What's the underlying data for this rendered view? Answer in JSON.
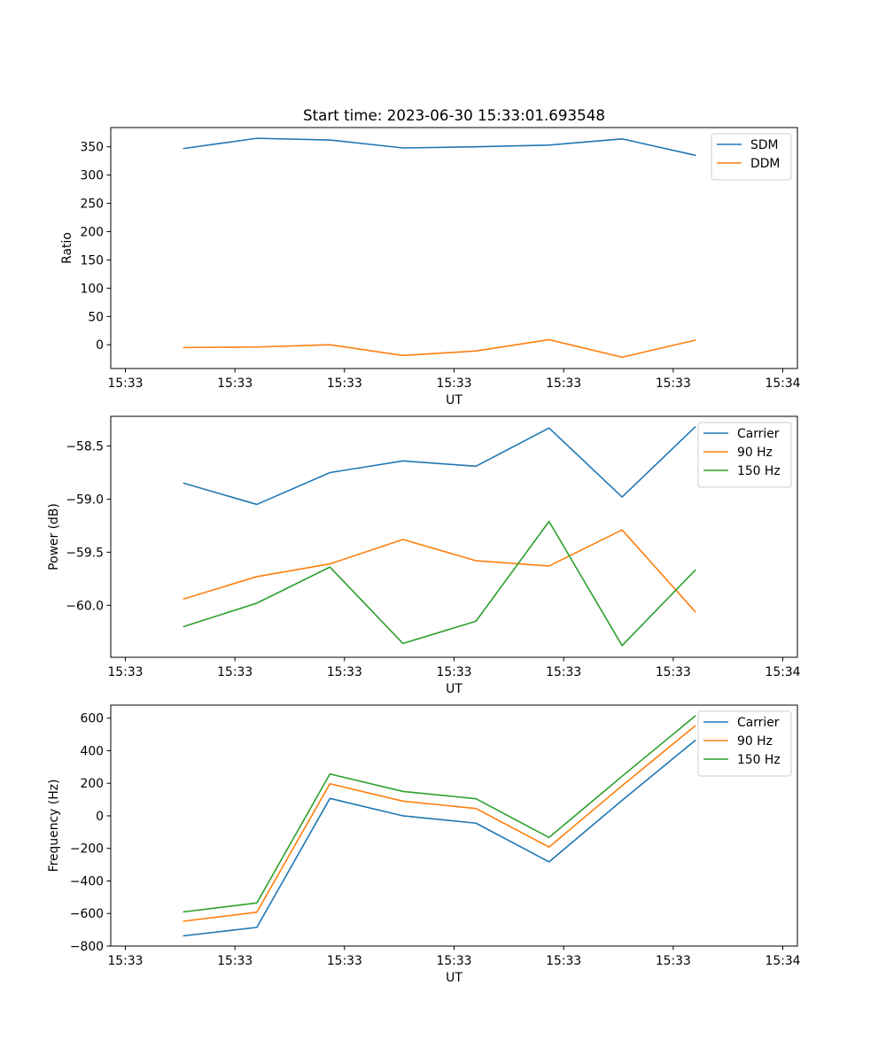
{
  "figure": {
    "title": "Start time: 2023-06-30 15:33:01.693548"
  },
  "chart_data": [
    {
      "type": "line",
      "title": "Start time: 2023-06-30 15:33:01.693548",
      "xlabel": "UT",
      "ylabel": "Ratio",
      "x_tick_labels": [
        "15:33",
        "15:33",
        "15:33",
        "15:33",
        "15:33",
        "15:33",
        "15:34"
      ],
      "x": [
        1,
        2,
        3,
        4,
        5,
        6,
        7,
        8
      ],
      "xlim": [
        0,
        9.4
      ],
      "ylim": [
        -42,
        384
      ],
      "y_ticks": [
        0,
        50,
        100,
        150,
        200,
        250,
        300,
        350
      ],
      "y_tick_labels": [
        "0",
        "50",
        "100",
        "150",
        "200",
        "250",
        "300",
        "350"
      ],
      "grid": false,
      "legend_position": "top-right",
      "series": [
        {
          "name": "SDM",
          "color": "#1f77b4",
          "values": [
            347,
            365,
            362,
            348,
            350,
            353,
            364,
            335
          ]
        },
        {
          "name": "DDM",
          "color": "#ff7f0e",
          "values": [
            -5,
            -4,
            0,
            -19,
            -11,
            9,
            -22,
            8
          ]
        }
      ]
    },
    {
      "type": "line",
      "title": "",
      "xlabel": "UT",
      "ylabel": "Power (dB)",
      "x_tick_labels": [
        "15:33",
        "15:33",
        "15:33",
        "15:33",
        "15:33",
        "15:33",
        "15:34"
      ],
      "x": [
        1,
        2,
        3,
        4,
        5,
        6,
        7,
        8
      ],
      "xlim": [
        0,
        9.4
      ],
      "ylim": [
        -60.49,
        -58.22
      ],
      "y_ticks": [
        -60.0,
        -59.5,
        -59.0,
        -58.5
      ],
      "y_tick_labels": [
        "−60.0",
        "−59.5",
        "−59.0",
        "−58.5"
      ],
      "grid": false,
      "legend_position": "top-right",
      "series": [
        {
          "name": "Carrier",
          "color": "#1f77b4",
          "values": [
            -58.85,
            -59.05,
            -58.75,
            -58.64,
            -58.69,
            -58.33,
            -58.98,
            -58.32
          ]
        },
        {
          "name": "90 Hz",
          "color": "#ff7f0e",
          "values": [
            -59.94,
            -59.73,
            -59.61,
            -59.38,
            -59.58,
            -59.63,
            -59.29,
            -60.06
          ]
        },
        {
          "name": "150 Hz",
          "color": "#2ca02c",
          "values": [
            -60.2,
            -59.98,
            -59.64,
            -60.36,
            -60.15,
            -59.21,
            -60.38,
            -59.67
          ]
        }
      ]
    },
    {
      "type": "line",
      "title": "",
      "xlabel": "UT",
      "ylabel": "Frequency (Hz)",
      "x_tick_labels": [
        "15:33",
        "15:33",
        "15:33",
        "15:33",
        "15:33",
        "15:33",
        "15:34"
      ],
      "x": [
        1,
        2,
        3,
        4,
        5,
        6,
        7,
        8
      ],
      "xlim": [
        0,
        9.4
      ],
      "ylim": [
        -800,
        680
      ],
      "y_ticks": [
        -800,
        -600,
        -400,
        -200,
        0,
        200,
        400,
        600
      ],
      "y_tick_labels": [
        "−800",
        "−600",
        "−400",
        "−200",
        "0",
        "200",
        "400",
        "600"
      ],
      "grid": false,
      "legend_position": "top-right",
      "series": [
        {
          "name": "Carrier",
          "color": "#1f77b4",
          "values": [
            -737,
            -685,
            107,
            0,
            -45,
            -283,
            95,
            463
          ]
        },
        {
          "name": "90 Hz",
          "color": "#ff7f0e",
          "values": [
            -647,
            -592,
            197,
            90,
            45,
            -192,
            185,
            553
          ]
        },
        {
          "name": "150 Hz",
          "color": "#2ca02c",
          "values": [
            -590,
            -535,
            257,
            150,
            105,
            -133,
            243,
            613
          ]
        }
      ]
    }
  ]
}
